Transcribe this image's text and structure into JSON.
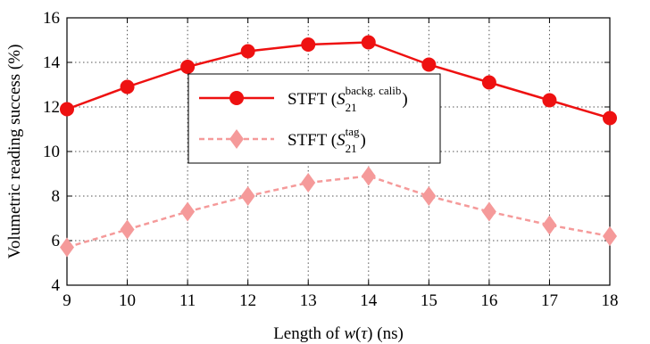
{
  "chart_data": {
    "type": "line",
    "xlabel": "Length of w(τ) (ns)",
    "xlabel_parts": {
      "prefix": "Length of ",
      "func": "w",
      "arg_open": "(",
      "arg": "τ",
      "arg_close": ")",
      "suffix": " (ns)"
    },
    "ylabel": "Volumetric reading success (%)",
    "x": [
      9,
      10,
      11,
      12,
      13,
      14,
      15,
      16,
      17,
      18
    ],
    "xlim": [
      9,
      18
    ],
    "ylim": [
      4,
      16
    ],
    "xticks": [
      "9",
      "10",
      "11",
      "12",
      "13",
      "14",
      "15",
      "16",
      "17",
      "18"
    ],
    "yticks": [
      "4",
      "6",
      "8",
      "10",
      "12",
      "14",
      "16"
    ],
    "grid": true,
    "legend_position": "center",
    "series": [
      {
        "name": "STFT (S21^backg. calib)",
        "legend": {
          "prefix": "STFT (",
          "symbol": "S",
          "sub": "21",
          "sup": "backg. calib",
          "suffix": ")"
        },
        "values": [
          11.9,
          12.9,
          13.8,
          14.5,
          14.8,
          14.9,
          13.9,
          13.1,
          12.3,
          11.5
        ],
        "color": "#ee1111",
        "marker": "circle",
        "line_style": "solid"
      },
      {
        "name": "STFT (S21^tag)",
        "legend": {
          "prefix": "STFT (",
          "symbol": "S",
          "sub": "21",
          "sup": "tag",
          "suffix": ")"
        },
        "values": [
          5.7,
          6.5,
          7.3,
          8.0,
          8.6,
          8.9,
          8.0,
          7.3,
          6.7,
          6.2
        ],
        "color": "#f59a9a",
        "marker": "diamond",
        "line_style": "dashed"
      }
    ]
  }
}
